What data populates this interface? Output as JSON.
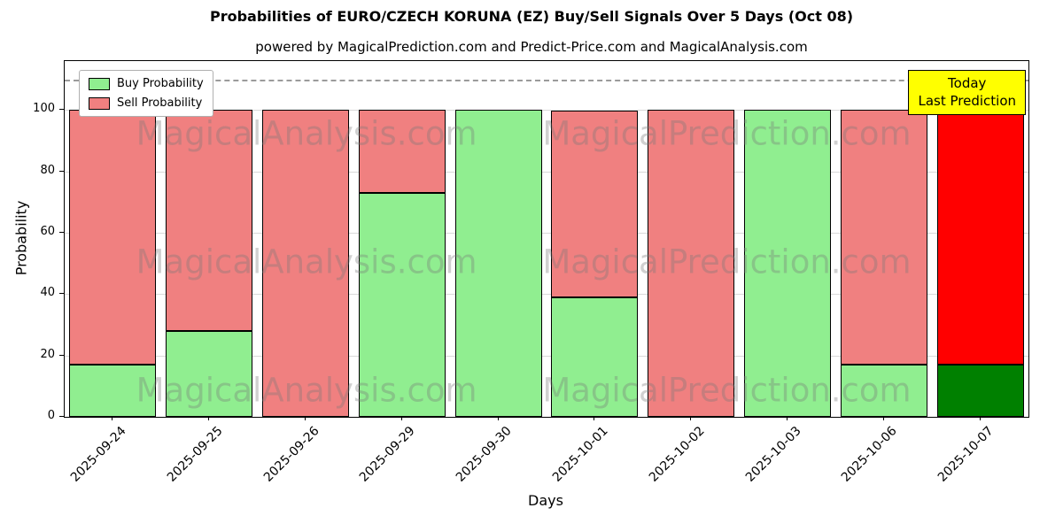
{
  "chart_data": {
    "type": "bar",
    "stacked": true,
    "title": "Probabilities of EURO/CZECH KORUNA (EZ) Buy/Sell Signals Over 5 Days (Oct 08)",
    "subtitle": "powered by MagicalPrediction.com and Predict-Price.com and MagicalAnalysis.com",
    "xlabel": "Days",
    "ylabel": "Probability",
    "categories": [
      "2025-09-24",
      "2025-09-25",
      "2025-09-26",
      "2025-09-29",
      "2025-09-30",
      "2025-10-01",
      "2025-10-02",
      "2025-10-03",
      "2025-10-06",
      "2025-10-07"
    ],
    "series": [
      {
        "name": "Buy Probability",
        "color": "#90ee90",
        "values": [
          17,
          28,
          0,
          73,
          100,
          39,
          0,
          100,
          17,
          17
        ]
      },
      {
        "name": "Sell Probability",
        "color": "#f08080",
        "values": [
          83,
          72,
          100,
          27,
          0,
          61,
          100,
          0,
          83,
          83
        ]
      }
    ],
    "highlight_last_bar": {
      "buy_color": "#008000",
      "sell_color": "#ff0000"
    },
    "ylim": [
      0,
      116
    ],
    "yticks": [
      0,
      20,
      40,
      60,
      80,
      100
    ],
    "dashed_line_y": 110,
    "grid": true,
    "legend_position": "upper-left",
    "annotation_box": {
      "lines": [
        "Today",
        "Last Prediction"
      ],
      "bg_color": "#ffff00"
    },
    "watermarks": {
      "texts": [
        "MagicalAnalysis.com",
        "MagicalPrediction.com"
      ],
      "rows": 3
    }
  }
}
